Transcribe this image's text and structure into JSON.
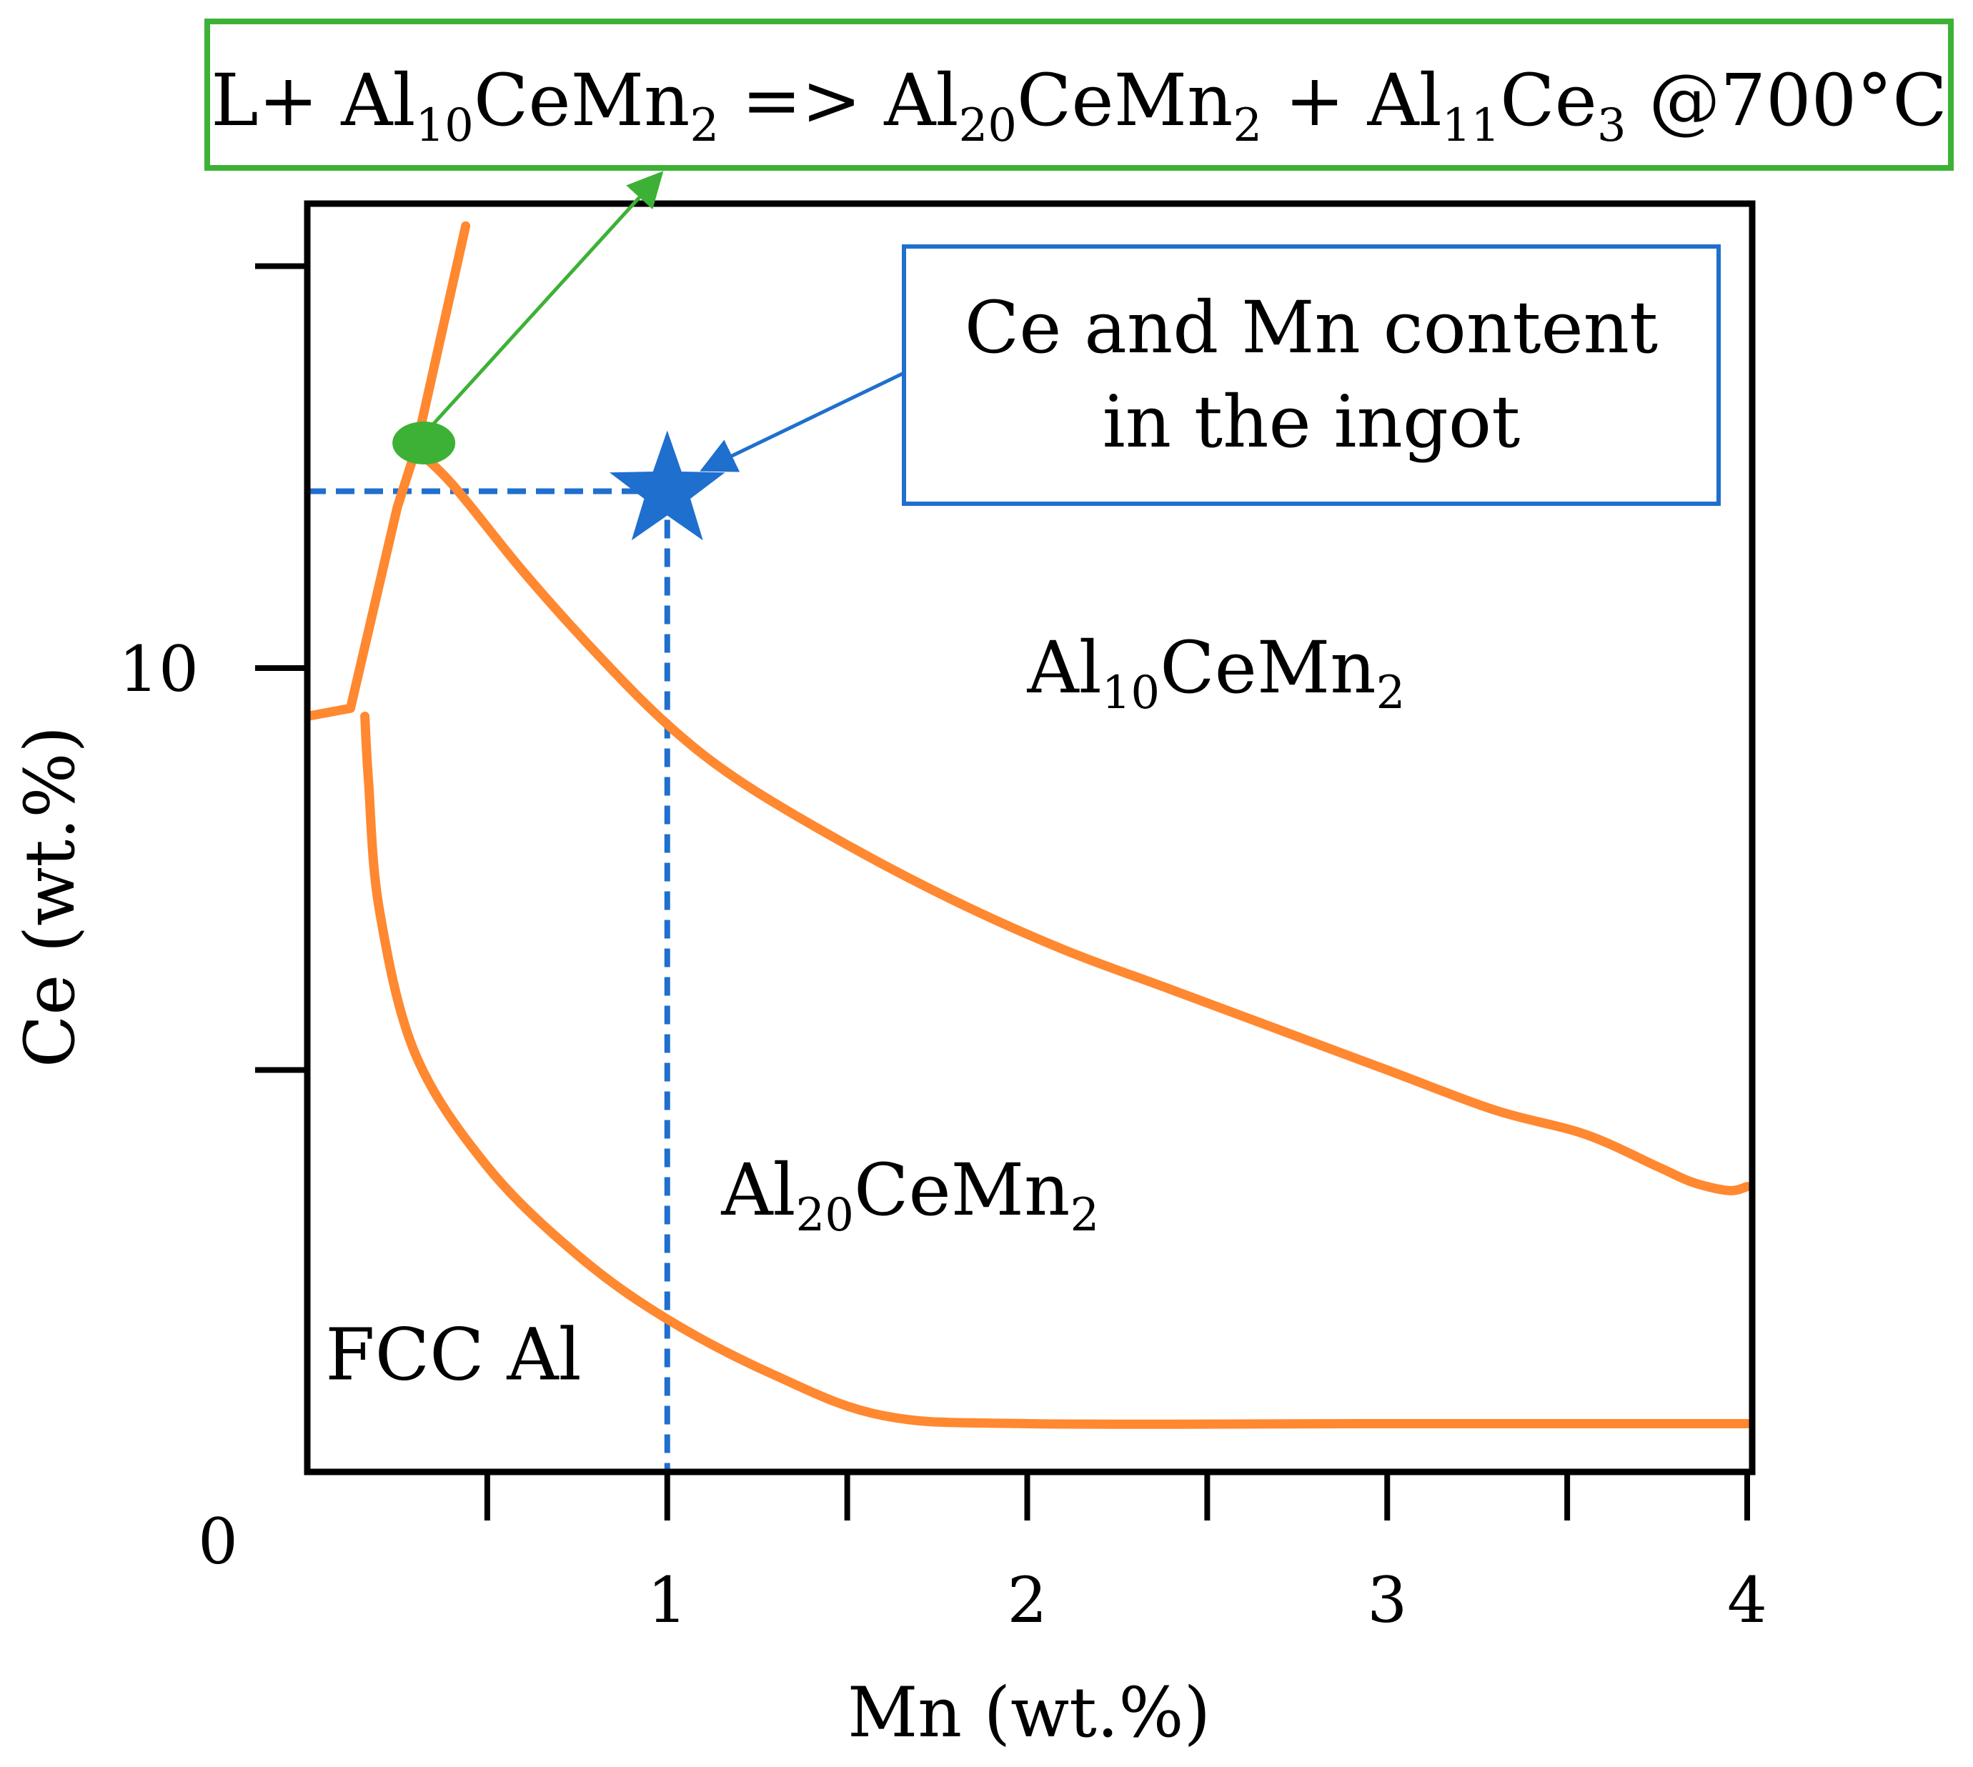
{
  "chart_data": {
    "type": "line",
    "title": "",
    "xlabel": "Mn (wt.%)",
    "ylabel": "Ce (wt.%)",
    "xlim": [
      0,
      4
    ],
    "ylim": [
      0,
      15.5
    ],
    "grid": false,
    "x_ticks": [
      {
        "value": 0,
        "label": "0"
      },
      {
        "value": 0.5,
        "label": ""
      },
      {
        "value": 1,
        "label": "1"
      },
      {
        "value": 1.5,
        "label": ""
      },
      {
        "value": 2,
        "label": "2"
      },
      {
        "value": 2.5,
        "label": ""
      },
      {
        "value": 3,
        "label": "3"
      },
      {
        "value": 3.5,
        "label": ""
      },
      {
        "value": 4,
        "label": "4"
      }
    ],
    "y_ticks": [
      {
        "value": 5,
        "label": ""
      },
      {
        "value": 10,
        "label": "10"
      },
      {
        "value": 15,
        "label": ""
      }
    ],
    "boundary_color": "#ff8830",
    "series": [
      {
        "points": [
          [
            0,
            9.4
          ],
          [
            0.12,
            9.5
          ],
          [
            0.25,
            12.0
          ],
          [
            0.3,
            12.7
          ],
          [
            0.44,
            15.5
          ]
        ]
      },
      {
        "points": [
          [
            0.28,
            12.8
          ],
          [
            0.4,
            12.3
          ],
          [
            0.6,
            11.2
          ],
          [
            0.8,
            10.2
          ],
          [
            1.0,
            9.3
          ],
          [
            1.2,
            8.6
          ],
          [
            1.5,
            7.8
          ],
          [
            1.8,
            7.1
          ],
          [
            2.1,
            6.5
          ],
          [
            2.4,
            6.0
          ],
          [
            2.7,
            5.5
          ],
          [
            3.0,
            5.0
          ],
          [
            3.3,
            4.5
          ],
          [
            3.55,
            4.2
          ],
          [
            3.75,
            3.8
          ],
          [
            3.85,
            3.6
          ],
          [
            3.95,
            3.5
          ],
          [
            4.0,
            3.55
          ]
        ]
      },
      {
        "points": [
          [
            0.16,
            9.4
          ],
          [
            0.17,
            8.6
          ],
          [
            0.2,
            7.0
          ],
          [
            0.3,
            5.2
          ],
          [
            0.5,
            3.8
          ],
          [
            0.75,
            2.7
          ],
          [
            1.0,
            1.9
          ],
          [
            1.3,
            1.2
          ],
          [
            1.6,
            0.7
          ],
          [
            2.0,
            0.6
          ],
          [
            3.0,
            0.6
          ],
          [
            4.0,
            0.6
          ]
        ]
      }
    ],
    "regions": [
      {
        "label": "FCC Al",
        "x": 0.05,
        "y": 1.15
      },
      {
        "base": "Al",
        "sub": "20",
        "rest": "CeMn",
        "sub2": "2",
        "x": 1.15,
        "y": 3.2
      },
      {
        "base": "Al",
        "sub": "10",
        "rest": "CeMn",
        "sub2": "2",
        "x": 2.0,
        "y": 9.7
      }
    ],
    "reaction_point": {
      "x": 0.3,
      "y": 12.8,
      "color": "#3db135"
    },
    "ingot_point": {
      "x": 1.0,
      "y": 12.2,
      "color": "#1f6fce"
    },
    "callouts": {
      "reaction": {
        "color": "#3db135",
        "parts": [
          {
            "t": "L+ Al"
          },
          {
            "t": "10",
            "sub": true
          },
          {
            "t": "CeMn"
          },
          {
            "t": "2",
            "sub": true
          },
          {
            "t": " => Al"
          },
          {
            "t": "20",
            "sub": true
          },
          {
            "t": "CeMn"
          },
          {
            "t": "2",
            "sub": true
          },
          {
            "t": " + Al"
          },
          {
            "t": "11",
            "sub": true
          },
          {
            "t": "Ce"
          },
          {
            "t": "3",
            "sub": true
          },
          {
            "t": " @700°C"
          }
        ]
      },
      "ingot": {
        "color": "#1f6fce",
        "line1": "Ce and Mn content",
        "line2": "in the ingot"
      }
    }
  }
}
